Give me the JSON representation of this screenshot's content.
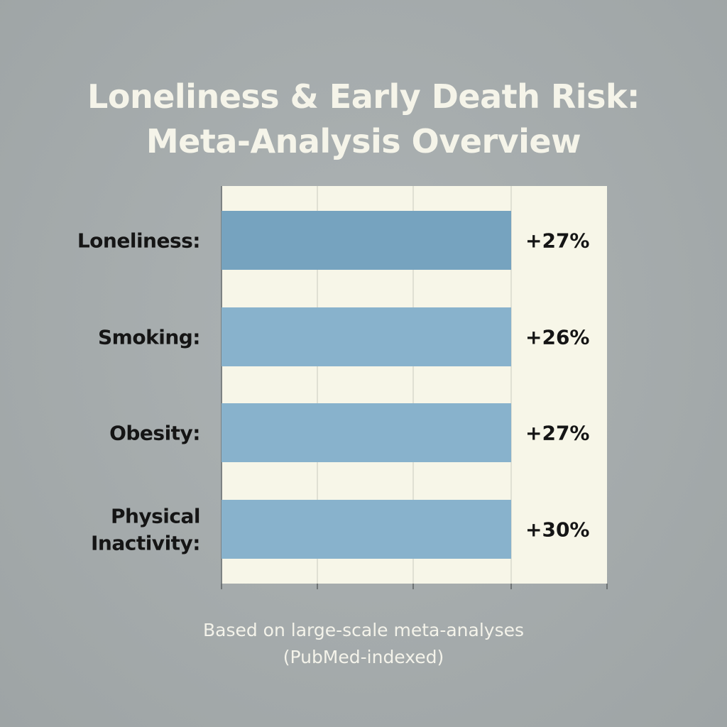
{
  "title_lines": [
    "Loneliness & Early Death Risk:",
    "Meta-Analysis Overview"
  ],
  "footnote_lines": [
    "Based on large-scale meta-analyses",
    "(PubMed-indexed)"
  ],
  "colors": {
    "background": "#a6acad",
    "plot_background": "#f7f6e8",
    "bar_first": "#76a3bf",
    "bar": "#88b2cc",
    "text_dark": "#151515",
    "text_light": "#f5f4e9"
  },
  "chart_data": {
    "type": "bar",
    "orientation": "horizontal",
    "title": "Loneliness & Early Death Risk: Meta-Analysis Overview",
    "categories": [
      "Loneliness:",
      "Smoking:",
      "Obesity:",
      "Physical Inactivity:"
    ],
    "category_label_lines": [
      [
        "Loneliness:"
      ],
      [
        "Smoking:"
      ],
      [
        "Obesity:"
      ],
      [
        "Physical",
        "Inactivity:"
      ]
    ],
    "values": [
      27,
      26,
      27,
      30
    ],
    "value_labels": [
      "+27%",
      "+26%",
      "+27%",
      "+30%"
    ],
    "xlabel": "",
    "ylabel": "",
    "grid": true,
    "legend": "none"
  }
}
